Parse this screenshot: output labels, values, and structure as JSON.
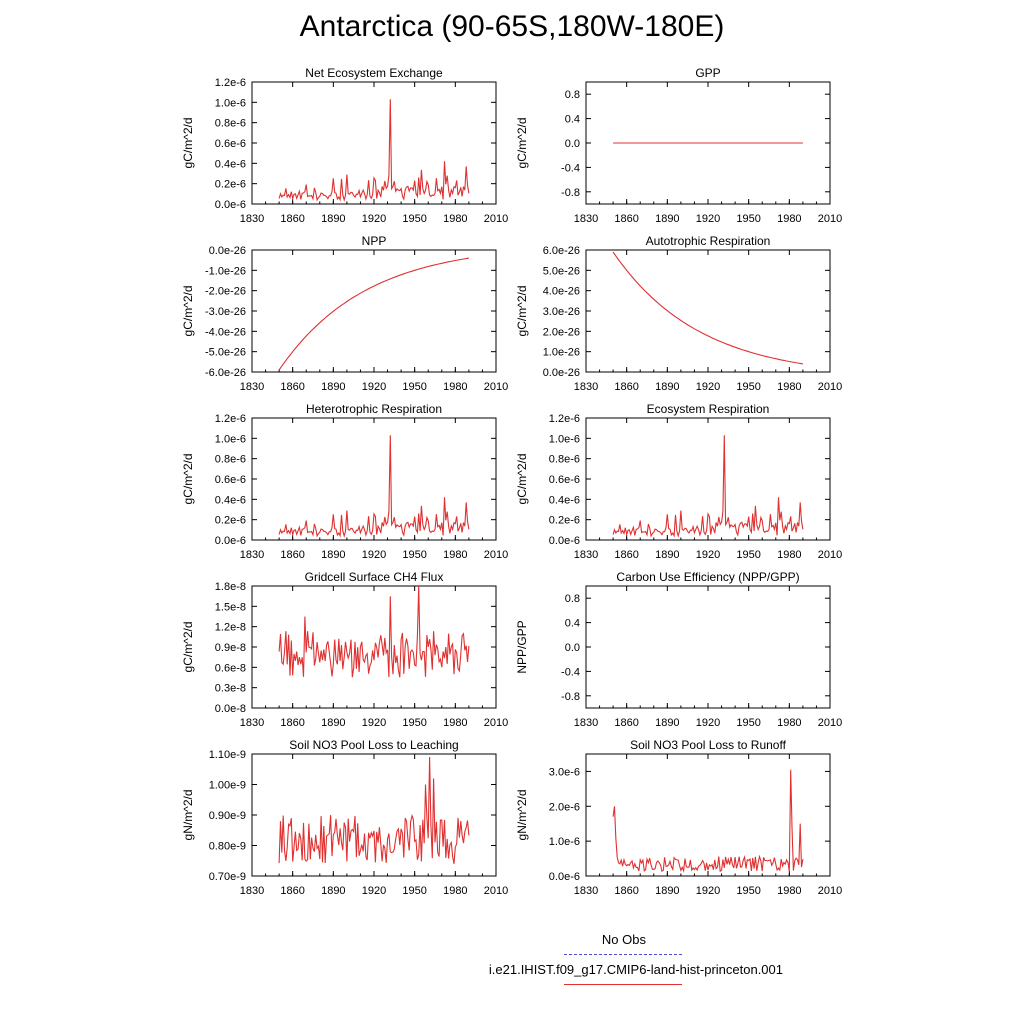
{
  "page": {
    "title": "Antarctica (90-65S,180W-180E)"
  },
  "legend": {
    "obs_label": "No Obs",
    "run_label": "i.e21.IHIST.f09_g17.CMIP6-land-hist-princeton.001",
    "obs_color": "#4b4bd8",
    "run_color": "#e03030"
  },
  "chart_data": [
    {
      "type": "line",
      "title": "Net Ecosystem Exchange",
      "ylabel": "gC/m^2/d",
      "xlim": [
        1830,
        2010
      ],
      "ylim": [
        0.0,
        1.2e-06
      ],
      "xticks": [
        "1830",
        "1860",
        "1890",
        "1920",
        "1950",
        "1980",
        "2010"
      ],
      "yticks": [
        "0.0e-6",
        "0.2e-6",
        "0.4e-6",
        "0.6e-6",
        "0.8e-6",
        "1.0e-6",
        "1.2e-6"
      ],
      "color": "#e03030",
      "x": [
        1850,
        1990
      ],
      "spiky": true,
      "peak_year": 1932,
      "peak": 1.03e-06,
      "base": 8e-08
    },
    {
      "type": "line",
      "title": "GPP",
      "ylabel": "gC/m^2/d",
      "xlim": [
        1830,
        2010
      ],
      "ylim": [
        -1,
        1
      ],
      "xticks": [
        "1830",
        "1860",
        "1890",
        "1920",
        "1950",
        "1980",
        "2010"
      ],
      "yticks": [
        "-0.8",
        "-0.4",
        "0.0",
        "0.4",
        "0.8"
      ],
      "color": "#e03030",
      "x": [
        1850,
        1990
      ],
      "values": [
        0,
        0
      ]
    },
    {
      "type": "line",
      "title": "NPP",
      "ylabel": "gC/m^2/d",
      "xlim": [
        1830,
        2010
      ],
      "ylim": [
        -6e-26,
        0.0
      ],
      "xticks": [
        "1830",
        "1860",
        "1890",
        "1920",
        "1950",
        "1980",
        "2010"
      ],
      "yticks": [
        "-6.0e-26",
        "-5.0e-26",
        "-4.0e-26",
        "-3.0e-26",
        "-2.0e-26",
        "-1.0e-26",
        "0.0e-26"
      ],
      "color": "#e03030",
      "decay": {
        "start": -5.9e-26,
        "end": -4e-27,
        "from": 1850,
        "to": 1990
      }
    },
    {
      "type": "line",
      "title": "Autotrophic Respiration",
      "ylabel": "gC/m^2/d",
      "xlim": [
        1830,
        2010
      ],
      "ylim": [
        0.0,
        6e-26
      ],
      "xticks": [
        "1830",
        "1860",
        "1890",
        "1920",
        "1950",
        "1980",
        "2010"
      ],
      "yticks": [
        "0.0e-26",
        "1.0e-26",
        "2.0e-26",
        "3.0e-26",
        "4.0e-26",
        "5.0e-26",
        "6.0e-26"
      ],
      "color": "#e03030",
      "decay": {
        "start": 5.9e-26,
        "end": 4e-27,
        "from": 1850,
        "to": 1990
      }
    },
    {
      "type": "line",
      "title": "Heterotrophic Respiration",
      "ylabel": "gC/m^2/d",
      "xlim": [
        1830,
        2010
      ],
      "ylim": [
        0.0,
        1.2e-06
      ],
      "xticks": [
        "1830",
        "1860",
        "1890",
        "1920",
        "1950",
        "1980",
        "2010"
      ],
      "yticks": [
        "0.0e-6",
        "0.2e-6",
        "0.4e-6",
        "0.6e-6",
        "0.8e-6",
        "1.0e-6",
        "1.2e-6"
      ],
      "color": "#e03030",
      "x": [
        1850,
        1990
      ],
      "spiky": true,
      "peak_year": 1932,
      "peak": 1.03e-06,
      "base": 8e-08
    },
    {
      "type": "line",
      "title": "Ecosystem Respiration",
      "ylabel": "gC/m^2/d",
      "xlim": [
        1830,
        2010
      ],
      "ylim": [
        0.0,
        1.2e-06
      ],
      "xticks": [
        "1830",
        "1860",
        "1890",
        "1920",
        "1950",
        "1980",
        "2010"
      ],
      "yticks": [
        "0.0e-6",
        "0.2e-6",
        "0.4e-6",
        "0.6e-6",
        "0.8e-6",
        "1.0e-6",
        "1.2e-6"
      ],
      "color": "#e03030",
      "x": [
        1850,
        1990
      ],
      "spiky": true,
      "peak_year": 1932,
      "peak": 1.03e-06,
      "base": 8e-08
    },
    {
      "type": "line",
      "title": "Gridcell Surface CH4 Flux",
      "ylabel": "gC/m^2/d",
      "xlim": [
        1830,
        2010
      ],
      "ylim": [
        0.0,
        1.8e-08
      ],
      "xticks": [
        "1830",
        "1860",
        "1890",
        "1920",
        "1950",
        "1980",
        "2010"
      ],
      "yticks": [
        "0.0e-8",
        "0.3e-8",
        "0.6e-8",
        "0.9e-8",
        "1.2e-8",
        "1.5e-8",
        "1.8e-8"
      ],
      "color": "#e03030",
      "x": [
        1850,
        1990
      ],
      "noisy": {
        "mean": 8e-09,
        "amp": 3.5e-09,
        "seed": 7
      },
      "peaks": [
        [
          1932,
          1.65e-08
        ],
        [
          1953,
          1.8e-08
        ],
        [
          1869,
          1.35e-08
        ]
      ]
    },
    {
      "type": "line",
      "title": "Carbon Use Efficiency (NPP/GPP)",
      "ylabel": "NPP/GPP",
      "xlim": [
        1830,
        2010
      ],
      "ylim": [
        -1,
        1
      ],
      "xticks": [
        "1830",
        "1860",
        "1890",
        "1920",
        "1950",
        "1980",
        "2010"
      ],
      "yticks": [
        "-0.8",
        "-0.4",
        "0.0",
        "0.4",
        "0.8"
      ],
      "color": "#e03030",
      "values": []
    },
    {
      "type": "line",
      "title": "Soil NO3 Pool Loss to Leaching",
      "ylabel": "gN/m^2/d",
      "xlim": [
        1830,
        2010
      ],
      "ylim": [
        7e-10,
        1.1e-09
      ],
      "xticks": [
        "1830",
        "1860",
        "1890",
        "1920",
        "1950",
        "1980",
        "2010"
      ],
      "yticks": [
        "0.70e-9",
        "0.80e-9",
        "0.90e-9",
        "1.00e-9",
        "1.10e-9"
      ],
      "color": "#e03030",
      "x": [
        1850,
        1990
      ],
      "noisy": {
        "mean": 8.2e-10,
        "amp": 8e-11,
        "seed": 13
      },
      "peaks": [
        [
          1961,
          1.09e-09
        ],
        [
          1958,
          1e-09
        ],
        [
          1964,
          1.02e-09
        ]
      ]
    },
    {
      "type": "line",
      "title": "Soil NO3 Pool Loss to Runoff",
      "ylabel": "gN/m^2/d",
      "xlim": [
        1830,
        2010
      ],
      "ylim": [
        0.0,
        3.5e-06
      ],
      "xticks": [
        "1830",
        "1860",
        "1890",
        "1920",
        "1950",
        "1980",
        "2010"
      ],
      "yticks": [
        "0.0e-6",
        "1.0e-6",
        "2.0e-6",
        "3.0e-6"
      ],
      "color": "#e03030",
      "x": [
        1850,
        1990
      ],
      "noisy": {
        "mean": 3.5e-07,
        "amp": 2.2e-07,
        "seed": 21
      },
      "peaks": [
        [
          1850,
          1.7e-06
        ],
        [
          1851,
          2e-06
        ],
        [
          1852,
          1.1e-06
        ],
        [
          1981,
          3.05e-06
        ],
        [
          1982,
          1.4e-06
        ],
        [
          1988,
          1.5e-06
        ]
      ]
    }
  ]
}
